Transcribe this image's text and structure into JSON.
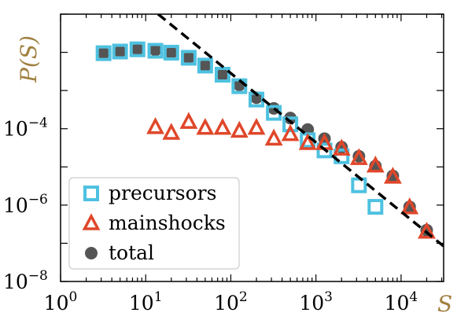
{
  "chart_data": {
    "type": "scatter",
    "xscale": "log",
    "yscale": "log",
    "xlim": [
      1,
      31622
    ],
    "ylim": [
      1e-08,
      0.1
    ],
    "grid": false,
    "legend_position": "bottom-left",
    "xlabel": "S",
    "ylabel": "P(S)",
    "xticks": [
      {
        "value": 1,
        "base": "10",
        "exp": "0"
      },
      {
        "value": 10,
        "base": "10",
        "exp": "1"
      },
      {
        "value": 100,
        "base": "10",
        "exp": "2"
      },
      {
        "value": 1000,
        "base": "10",
        "exp": "3"
      },
      {
        "value": 10000,
        "base": "10",
        "exp": "4"
      }
    ],
    "yticks": [
      {
        "value": 1e-08,
        "base": "10",
        "exp": "−8"
      },
      {
        "value": 1e-06,
        "base": "10",
        "exp": "−6"
      },
      {
        "value": 0.0001,
        "base": "10",
        "exp": "−4"
      }
    ],
    "series": [
      {
        "name": "total",
        "marker": "circle",
        "color": "#555555",
        "x": [
          3.2,
          5,
          8,
          13,
          20,
          32,
          50,
          80,
          126,
          200,
          320,
          500,
          800,
          1260,
          2000,
          3200,
          5000,
          8000,
          12600,
          20000
        ],
        "y": [
          0.0095,
          0.0105,
          0.012,
          0.0115,
          0.0098,
          0.0072,
          0.0045,
          0.0026,
          0.0014,
          0.00065,
          0.00034,
          0.00019,
          9.5e-05,
          5.5e-05,
          3.3e-05,
          1.9e-05,
          1.05e-05,
          5.8e-06,
          9e-07,
          2.2e-07
        ]
      },
      {
        "name": "precursors",
        "marker": "square",
        "color": "#4ec1e0",
        "x": [
          3.2,
          5,
          8,
          13,
          20,
          32,
          50,
          80,
          126,
          200,
          320,
          500,
          800,
          1260,
          2000,
          3200,
          5000
        ],
        "y": [
          0.0095,
          0.0105,
          0.012,
          0.011,
          0.0098,
          0.0072,
          0.0045,
          0.0026,
          0.0013,
          0.00058,
          0.00026,
          0.00013,
          5e-05,
          2.7e-05,
          1.9e-05,
          3.3e-06,
          9e-07
        ]
      },
      {
        "name": "mainshocks",
        "marker": "triangle",
        "color": "#e0472a",
        "x": [
          13,
          20,
          32,
          50,
          80,
          126,
          200,
          320,
          500,
          800,
          1260,
          2000,
          3200,
          5000,
          8000,
          12600,
          20000
        ],
        "y": [
          0.00011,
          7.8e-05,
          0.00015,
          0.000105,
          0.000105,
          8.8e-05,
          0.000105,
          5.5e-05,
          7.2e-05,
          4.2e-05,
          4.2e-05,
          3e-05,
          1.7e-05,
          1.08e-05,
          5.5e-06,
          8.7e-07,
          2e-07
        ]
      }
    ],
    "reference_line": {
      "style": "dashed",
      "color": "#000000",
      "x": [
        14,
        31622
      ],
      "y": [
        0.1,
        8.38e-08
      ]
    }
  }
}
